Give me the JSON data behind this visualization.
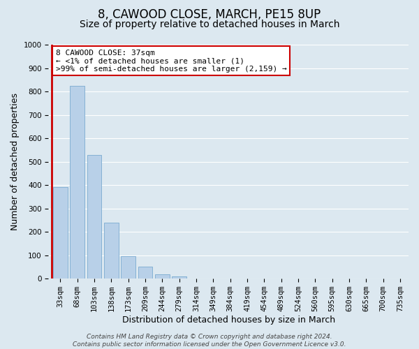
{
  "title": "8, CAWOOD CLOSE, MARCH, PE15 8UP",
  "subtitle": "Size of property relative to detached houses in March",
  "xlabel": "Distribution of detached houses by size in March",
  "ylabel": "Number of detached properties",
  "bar_labels": [
    "33sqm",
    "68sqm",
    "103sqm",
    "138sqm",
    "173sqm",
    "209sqm",
    "244sqm",
    "279sqm",
    "314sqm",
    "349sqm",
    "384sqm",
    "419sqm",
    "454sqm",
    "489sqm",
    "524sqm",
    "560sqm",
    "595sqm",
    "630sqm",
    "665sqm",
    "700sqm",
    "735sqm"
  ],
  "bar_values": [
    390,
    825,
    530,
    240,
    95,
    50,
    20,
    10,
    0,
    0,
    0,
    0,
    0,
    0,
    0,
    0,
    0,
    0,
    0,
    0,
    0
  ],
  "bar_color": "#b8d0e8",
  "bar_edge_color": "#7aaad0",
  "highlight_color": "#cc0000",
  "ylim": [
    0,
    1000
  ],
  "yticks": [
    0,
    100,
    200,
    300,
    400,
    500,
    600,
    700,
    800,
    900,
    1000
  ],
  "annotation_line1": "8 CAWOOD CLOSE: 37sqm",
  "annotation_line2": "← <1% of detached houses are smaller (1)",
  "annotation_line3": ">99% of semi-detached houses are larger (2,159) →",
  "annotation_box_color": "#ffffff",
  "annotation_border_color": "#cc0000",
  "footer_line1": "Contains HM Land Registry data © Crown copyright and database right 2024.",
  "footer_line2": "Contains public sector information licensed under the Open Government Licence v3.0.",
  "background_color": "#dce8f0",
  "plot_bg_color": "#dce8f0",
  "grid_color": "#ffffff",
  "title_fontsize": 12,
  "subtitle_fontsize": 10,
  "axis_label_fontsize": 9,
  "tick_fontsize": 7.5,
  "annotation_fontsize": 8,
  "footer_fontsize": 6.5
}
